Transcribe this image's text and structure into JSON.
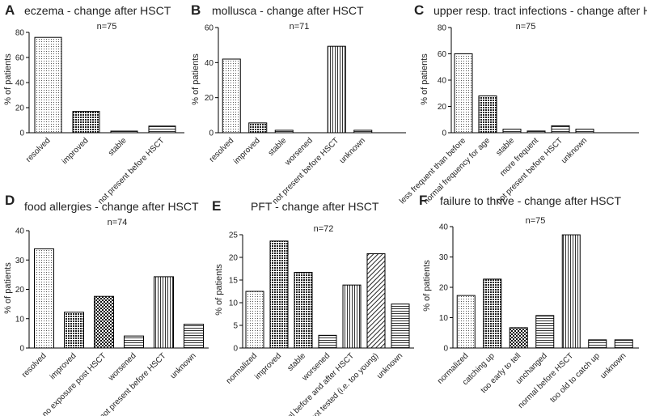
{
  "panels": [
    {
      "letter": "A",
      "chart_data": {
        "type": "bar",
        "title": "eczema - change after HSCT",
        "subtitle": "n=75",
        "ylabel": "% of patients",
        "xlabel": "",
        "ylim": [
          0,
          80
        ],
        "yticks": [
          0,
          20,
          40,
          60,
          80
        ],
        "categories": [
          "resolved",
          "improved",
          "stable",
          "not present before HSCT"
        ],
        "values": [
          76,
          17,
          1.3,
          5.3
        ],
        "patterns": [
          "dots",
          "cross",
          "hlines",
          "hlines"
        ],
        "grid": false
      }
    },
    {
      "letter": "B",
      "chart_data": {
        "type": "bar",
        "title": "mollusca - change after HSCT",
        "subtitle": "n=71",
        "ylabel": "% of patients",
        "xlabel": "",
        "ylim": [
          0,
          60
        ],
        "yticks": [
          0,
          20,
          40,
          60
        ],
        "categories": [
          "resolved",
          "improved",
          "stable",
          "worsened",
          "not present before HSCT",
          "unknown"
        ],
        "values": [
          42,
          5.6,
          1.4,
          0,
          49.3,
          1.4
        ],
        "patterns": [
          "dots",
          "cross",
          "hlines",
          "hlines",
          "vlines",
          "hlines"
        ],
        "grid": false
      }
    },
    {
      "letter": "C",
      "chart_data": {
        "type": "bar",
        "title": "upper resp. tract infections - change after HSCT",
        "subtitle": "n=75",
        "ylabel": "% of patients",
        "xlabel": "",
        "ylim": [
          0,
          80
        ],
        "yticks": [
          0,
          20,
          40,
          60,
          80
        ],
        "categories": [
          "less frequent than before",
          "normal frequency for age",
          "stable",
          "more frequent",
          "not present before HSCT",
          "unknown"
        ],
        "values": [
          60,
          28,
          2.7,
          1.3,
          5.3,
          2.7
        ],
        "patterns": [
          "dots",
          "cross",
          "hlines",
          "hlines",
          "hlines",
          "hlines"
        ],
        "grid": false
      }
    },
    {
      "letter": "D",
      "chart_data": {
        "type": "bar",
        "title": "food allergies - change after HSCT",
        "subtitle": "n=74",
        "ylabel": "% of patients",
        "xlabel": "",
        "ylim": [
          0,
          40
        ],
        "yticks": [
          0,
          10,
          20,
          30,
          40
        ],
        "categories": [
          "resolved",
          "improved",
          "no exposure post HSCT",
          "worsened",
          "not present before HSCT",
          "unknown"
        ],
        "values": [
          33.8,
          12.2,
          17.6,
          4.1,
          24.3,
          8.1
        ],
        "patterns": [
          "dots",
          "cross",
          "checker",
          "hlines",
          "vlines",
          "hlines"
        ],
        "grid": false
      }
    },
    {
      "letter": "E",
      "chart_data": {
        "type": "bar",
        "title": "PFT - change after HSCT",
        "subtitle": "n=72",
        "ylabel": "% of patients",
        "xlabel": "",
        "ylim": [
          0,
          25
        ],
        "yticks": [
          0,
          5,
          10,
          15,
          20,
          25
        ],
        "categories": [
          "normalized",
          "improved",
          "stable",
          "worsened",
          "normal before and after HSCT",
          "not tested (i.e. too young)",
          "unknown"
        ],
        "values": [
          12.5,
          23.6,
          16.7,
          2.8,
          13.9,
          20.8,
          9.7
        ],
        "patterns": [
          "dots",
          "cross",
          "cross",
          "hlines",
          "vlines",
          "diag",
          "hlines"
        ],
        "grid": false
      }
    },
    {
      "letter": "F",
      "chart_data": {
        "type": "bar",
        "title": "failure to thrive - change after HSCT",
        "subtitle": "n=75",
        "ylabel": "% of patients",
        "xlabel": "",
        "ylim": [
          0,
          40
        ],
        "yticks": [
          0,
          10,
          20,
          30,
          40
        ],
        "categories": [
          "normalized",
          "catching up",
          "too early to tell",
          "unchanged",
          "normal before HSCT",
          "too old to catch up",
          "unknown"
        ],
        "values": [
          17.3,
          22.7,
          6.7,
          10.7,
          37.3,
          2.7,
          2.7
        ],
        "patterns": [
          "dots",
          "cross",
          "checker",
          "hlines",
          "vlines",
          "hlines",
          "hlines"
        ],
        "grid": false
      }
    }
  ],
  "colors": {
    "bar_stroke": "#000000",
    "pattern_ink": "#333333",
    "background": "#ffffff",
    "text": "#222222"
  }
}
